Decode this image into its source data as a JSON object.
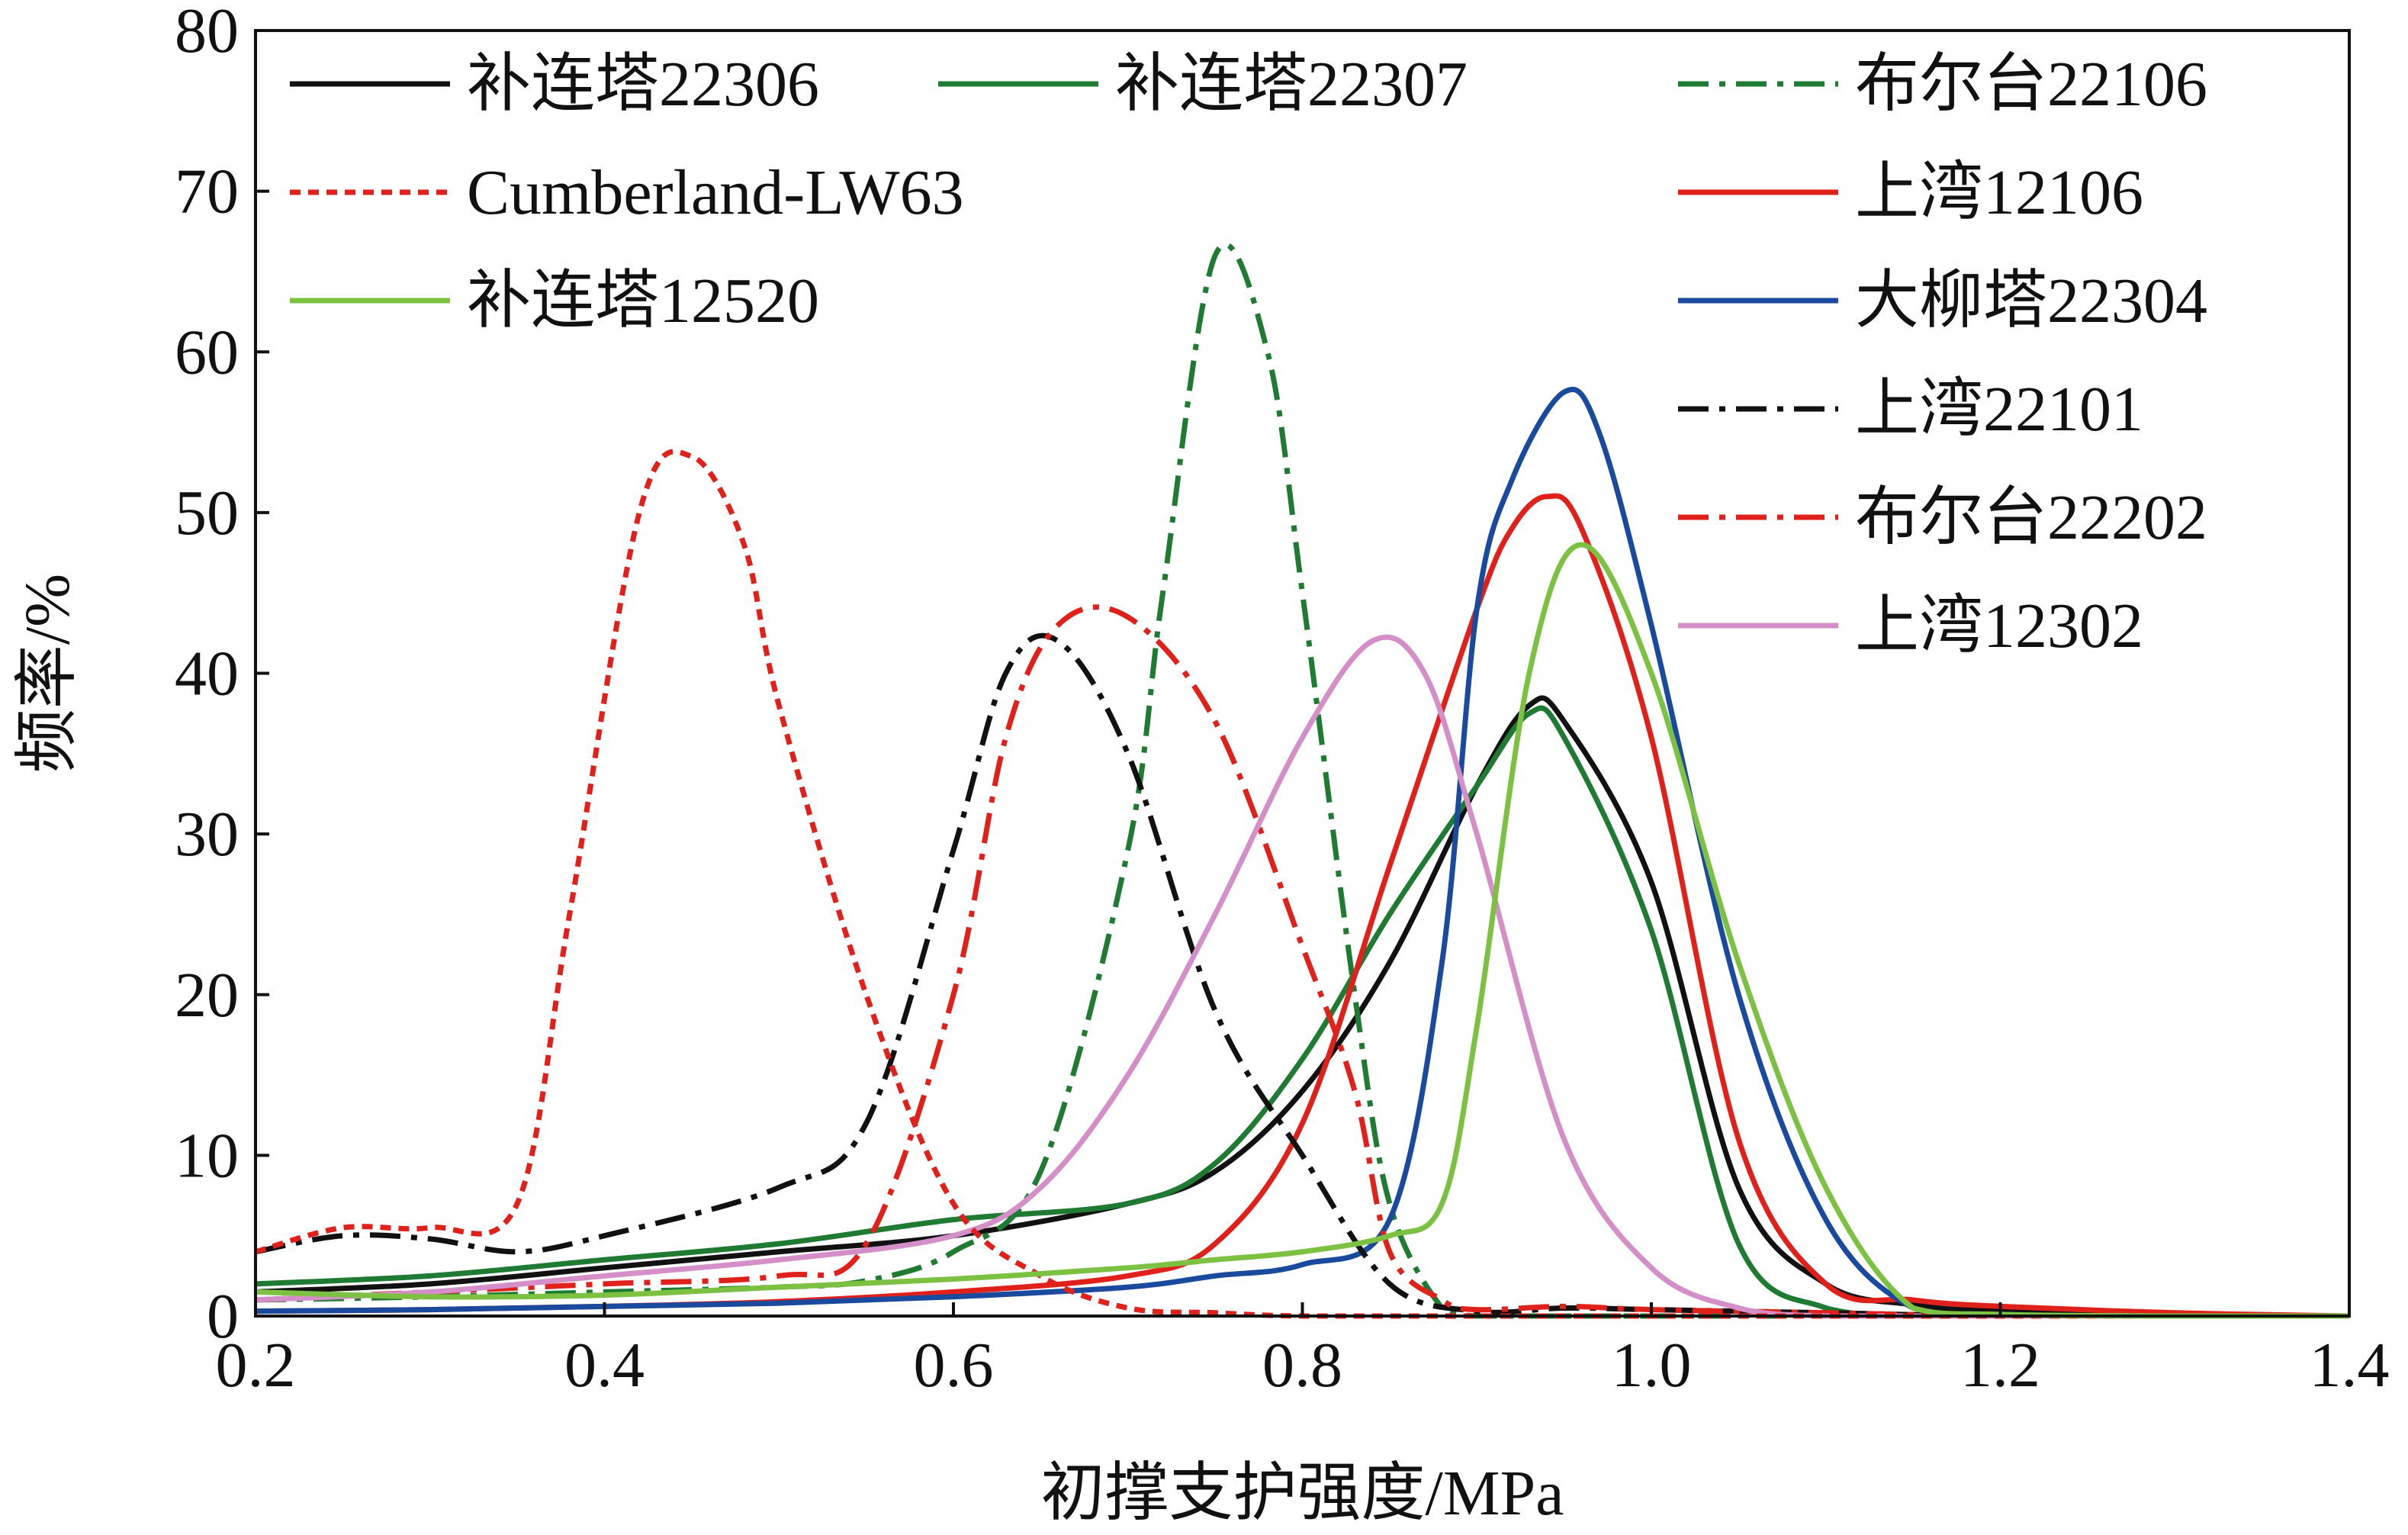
{
  "chart_data": {
    "type": "line",
    "title": "",
    "xlabel": "初撑支护强度/MPa",
    "ylabel": "频率/%",
    "xlim": [
      0.2,
      1.4
    ],
    "ylim": [
      0,
      80
    ],
    "xticks": [
      "0.2",
      "0.4",
      "0.6",
      "0.8",
      "1.0",
      "1.2",
      "1.4"
    ],
    "yticks": [
      "0",
      "10",
      "20",
      "30",
      "40",
      "50",
      "60",
      "70",
      "80"
    ],
    "grid": false,
    "legend_position": "top",
    "series": [
      {
        "name": "补连塔22306",
        "color": "#111111",
        "dash": "solid",
        "x": [
          0.2,
          0.3,
          0.4,
          0.5,
          0.6,
          0.7,
          0.75,
          0.8,
          0.85,
          0.9,
          0.93,
          0.95,
          1.0,
          1.05,
          1.1,
          1.15,
          1.2,
          1.3,
          1.4
        ],
        "y": [
          1.5,
          2,
          3,
          4,
          5,
          7,
          9,
          14,
          22,
          33,
          38,
          37,
          27,
          8,
          2,
          0.7,
          0.3,
          0.1,
          0
        ]
      },
      {
        "name": "补连塔22307",
        "color": "#1f7a32",
        "dash": "solid",
        "x": [
          0.2,
          0.3,
          0.4,
          0.5,
          0.6,
          0.7,
          0.75,
          0.8,
          0.85,
          0.9,
          0.93,
          0.95,
          1.0,
          1.05,
          1.1,
          1.15,
          1.2,
          1.3,
          1.4
        ],
        "y": [
          2,
          2.5,
          3.5,
          4.5,
          6,
          7,
          9.5,
          16,
          25,
          33,
          37.5,
          36,
          24,
          4.5,
          0.5,
          0,
          0,
          0,
          0
        ]
      },
      {
        "name": "布尔台22106",
        "color": "#1f7a32",
        "dash": "dashdot",
        "x": [
          0.2,
          0.3,
          0.4,
          0.5,
          0.55,
          0.6,
          0.65,
          0.7,
          0.72,
          0.75,
          0.78,
          0.8,
          0.83,
          0.85,
          0.88,
          0.9,
          0.95,
          1.0,
          1.1,
          1.2,
          1.3,
          1.4
        ],
        "y": [
          1,
          1.2,
          1.5,
          1.8,
          2.2,
          4,
          9,
          29,
          45,
          66,
          60,
          45,
          20,
          7,
          0.5,
          0,
          0,
          0,
          0,
          0,
          0,
          0
        ]
      },
      {
        "name": "上湾12106",
        "color": "#e0201b",
        "dash": "solid",
        "x": [
          0.2,
          0.3,
          0.4,
          0.5,
          0.6,
          0.7,
          0.75,
          0.8,
          0.85,
          0.9,
          0.92,
          0.94,
          0.96,
          1.0,
          1.05,
          1.1,
          1.15,
          1.2,
          1.3,
          1.4
        ],
        "y": [
          0.3,
          0.4,
          0.6,
          0.9,
          1.5,
          2.5,
          4.5,
          12,
          28,
          44,
          49,
          51,
          49,
          36,
          11,
          2,
          1,
          0.6,
          0.2,
          0
        ]
      },
      {
        "name": "大柳塔22304",
        "color": "#1a4a9e",
        "dash": "solid",
        "x": [
          0.2,
          0.3,
          0.4,
          0.5,
          0.6,
          0.7,
          0.75,
          0.8,
          0.85,
          0.88,
          0.9,
          0.92,
          0.95,
          0.97,
          1.0,
          1.05,
          1.1,
          1.15,
          1.2,
          1.3,
          1.4
        ],
        "y": [
          0.3,
          0.4,
          0.6,
          0.8,
          1.2,
          1.8,
          2.5,
          3.2,
          6,
          22,
          44,
          52,
          57.5,
          55,
          43,
          20,
          6,
          0.5,
          0.1,
          0,
          0
        ]
      },
      {
        "name": "上湾22101",
        "color": "#111111",
        "dash": "dashdot",
        "x": [
          0.2,
          0.25,
          0.3,
          0.35,
          0.4,
          0.5,
          0.55,
          0.6,
          0.63,
          0.66,
          0.7,
          0.75,
          0.8,
          0.85,
          0.9,
          0.95,
          1.0,
          1.1,
          1.2,
          1.3,
          1.4
        ],
        "y": [
          4,
          5,
          4.8,
          4,
          5,
          8,
          12,
          29,
          40,
          42,
          35,
          19,
          10,
          2,
          0.3,
          0.5,
          0.4,
          0.2,
          0,
          0,
          0
        ]
      },
      {
        "name": "布尔台22202",
        "color": "#e0201b",
        "dash": "dashdot",
        "x": [
          0.2,
          0.3,
          0.4,
          0.5,
          0.55,
          0.6,
          0.63,
          0.66,
          0.7,
          0.75,
          0.8,
          0.83,
          0.85,
          0.88,
          0.9,
          0.95,
          1.0,
          1.1,
          1.2,
          1.3,
          1.4
        ],
        "y": [
          1,
          1.5,
          2,
          2.5,
          4.5,
          20,
          36,
          43,
          43.5,
          37,
          23,
          14,
          4,
          1,
          0.4,
          0.6,
          0.4,
          0.2,
          0,
          0,
          0
        ]
      },
      {
        "name": "上湾12302",
        "color": "#d48fc8",
        "dash": "solid",
        "x": [
          0.2,
          0.3,
          0.4,
          0.5,
          0.6,
          0.65,
          0.7,
          0.75,
          0.8,
          0.84,
          0.87,
          0.9,
          0.95,
          1.0,
          1.05,
          1.1,
          1.15,
          1.2,
          1.3,
          1.4
        ],
        "y": [
          1,
          1.5,
          2.5,
          3.5,
          5,
          8,
          15,
          25,
          36,
          42,
          40,
          30,
          11,
          3,
          0.5,
          0,
          0,
          0,
          0,
          0
        ]
      },
      {
        "name": "Cumberland-LW63",
        "color": "#e0201b",
        "dash": "dotted",
        "x": [
          0.2,
          0.25,
          0.3,
          0.35,
          0.38,
          0.42,
          0.45,
          0.48,
          0.5,
          0.55,
          0.6,
          0.65,
          0.7,
          0.75,
          0.8,
          0.9,
          1.0,
          1.1,
          1.2,
          1.3,
          1.4
        ],
        "y": [
          4,
          5.5,
          5.5,
          7,
          25,
          50,
          53.5,
          48,
          38,
          20,
          7,
          2.5,
          0.5,
          0.2,
          0,
          0,
          0,
          0,
          0,
          0,
          0
        ]
      },
      {
        "name": "补连塔12520",
        "color": "#7cc142",
        "dash": "solid",
        "x": [
          0.2,
          0.3,
          0.4,
          0.5,
          0.6,
          0.7,
          0.75,
          0.8,
          0.85,
          0.88,
          0.9,
          0.93,
          0.96,
          1.0,
          1.05,
          1.1,
          1.15,
          1.2,
          1.3,
          1.4
        ],
        "y": [
          1.5,
          1.2,
          1.3,
          1.8,
          2.3,
          3,
          3.5,
          4,
          5,
          7,
          18,
          40,
          48,
          40,
          22,
          8,
          0.5,
          0.1,
          0,
          0
        ]
      }
    ]
  },
  "legend": {
    "items": [
      {
        "series": 0,
        "col": 0,
        "row": 0
      },
      {
        "series": 1,
        "col": 1,
        "row": 0
      },
      {
        "series": 2,
        "col": 2,
        "row": 0
      },
      {
        "series": 8,
        "col": 0,
        "row": 1
      },
      {
        "series": 3,
        "col": 2,
        "row": 1
      },
      {
        "series": 9,
        "col": 0,
        "row": 2
      },
      {
        "series": 4,
        "col": 2,
        "row": 2
      },
      {
        "series": 5,
        "col": 2,
        "row": 3
      },
      {
        "series": 6,
        "col": 2,
        "row": 4
      },
      {
        "series": 7,
        "col": 2,
        "row": 5
      }
    ]
  }
}
